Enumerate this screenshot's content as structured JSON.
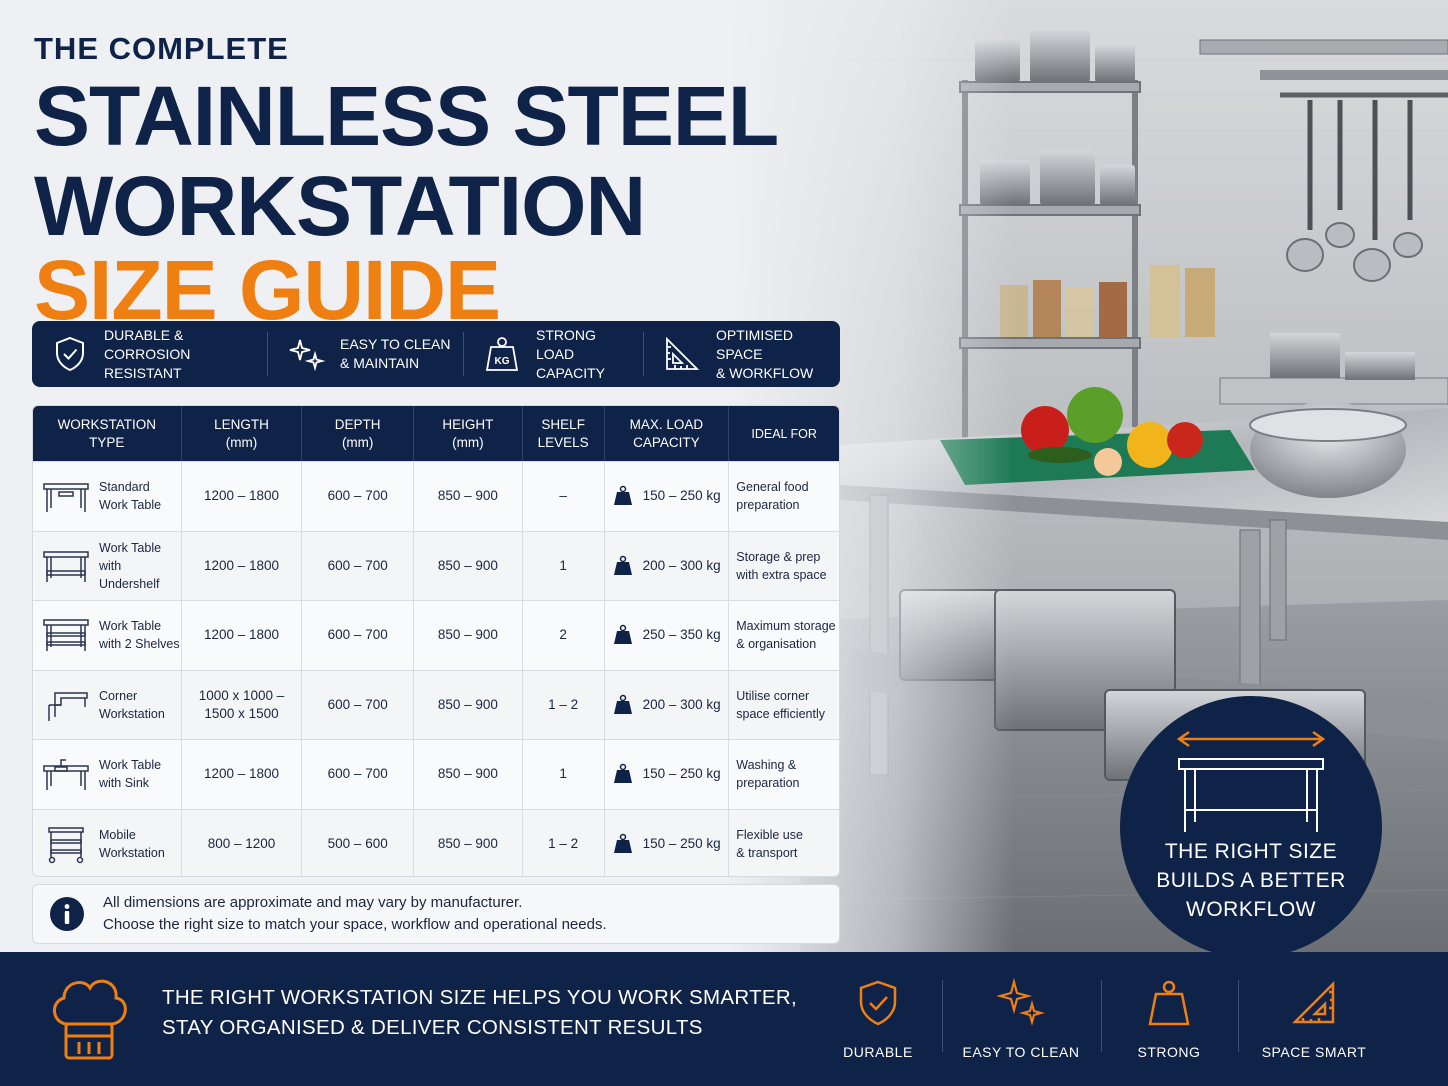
{
  "colors": {
    "navy": "#0f2247",
    "orange": "#f07f12",
    "steel": "#a8adb4"
  },
  "title": {
    "pre": "THE COMPLETE",
    "line1": "STAINLESS STEEL",
    "line2": "WORKSTATION",
    "accent": "SIZE GUIDE"
  },
  "features": [
    {
      "icon": "shield-check-icon",
      "label": "DURABLE &\nCORROSION RESISTANT"
    },
    {
      "icon": "sparkle-icon",
      "label": "EASY TO CLEAN\n& MAINTAIN"
    },
    {
      "icon": "kg-weight-icon",
      "label": "STRONG LOAD\nCAPACITY",
      "icon_text": "KG"
    },
    {
      "icon": "set-square-icon",
      "label": "OPTIMISED SPACE\n& WORKFLOW"
    }
  ],
  "table": {
    "headers": [
      "WORKSTATION\nTYPE",
      "LENGTH\n(mm)",
      "DEPTH\n(mm)",
      "HEIGHT\n(mm)",
      "SHELF\nLEVELS",
      "MAX. LOAD\nCAPACITY",
      "IDEAL FOR"
    ],
    "rows": [
      {
        "icon": "standard-table-icon",
        "type": "Standard\nWork Table",
        "length": "1200 – 1800",
        "depth": "600 – 700",
        "height": "850 – 900",
        "shelves": "–",
        "load": "150 – 250 kg",
        "ideal": "General food\npreparation"
      },
      {
        "icon": "undershelf-table-icon",
        "type": "Work Table\nwith Undershelf",
        "length": "1200 – 1800",
        "depth": "600 – 700",
        "height": "850 – 900",
        "shelves": "1",
        "load": "200 – 300 kg",
        "ideal": "Storage & prep\nwith extra space"
      },
      {
        "icon": "two-shelf-table-icon",
        "type": "Work Table\nwith 2 Shelves",
        "length": "1200 – 1800",
        "depth": "600 – 700",
        "height": "850 – 900",
        "shelves": "2",
        "load": "250 – 350 kg",
        "ideal": "Maximum storage\n& organisation"
      },
      {
        "icon": "corner-workstation-icon",
        "type": "Corner\nWorkstation",
        "length": "1000 x 1000 –\n1500 x 1500",
        "depth": "600 – 700",
        "height": "850 – 900",
        "shelves": "1 – 2",
        "load": "200 – 300 kg",
        "ideal": "Utilise corner\nspace efficiently"
      },
      {
        "icon": "sink-table-icon",
        "type": "Work Table\nwith Sink",
        "length": "1200 – 1800",
        "depth": "600 – 700",
        "height": "850 – 900",
        "shelves": "1",
        "load": "150 – 250 kg",
        "ideal": "Washing &\npreparation"
      },
      {
        "icon": "mobile-workstation-icon",
        "type": "Mobile\nWorkstation",
        "length": "800 – 1200",
        "depth": "500 – 600",
        "height": "850 – 900",
        "shelves": "1 – 2",
        "load": "150 – 250 kg",
        "ideal": "Flexible use\n& transport"
      }
    ]
  },
  "note": {
    "icon": "info-icon",
    "text": "All dimensions are approximate and may vary by manufacturer.\nChoose the right size to match your space, workflow and operational needs."
  },
  "badge": {
    "icon": "table-width-icon",
    "text": "THE RIGHT SIZE\nBUILDS A BETTER\nWORKFLOW"
  },
  "footer": {
    "icon": "chef-hat-icon",
    "text": "THE RIGHT WORKSTATION SIZE HELPS YOU WORK SMARTER,\nSTAY ORGANISED & DELIVER CONSISTENT RESULTS",
    "features": [
      {
        "icon": "shield-check-icon",
        "label": "DURABLE"
      },
      {
        "icon": "sparkle-icon",
        "label": "EASY TO CLEAN"
      },
      {
        "icon": "weight-icon",
        "label": "STRONG"
      },
      {
        "icon": "set-square-icon",
        "label": "SPACE SMART"
      }
    ]
  }
}
